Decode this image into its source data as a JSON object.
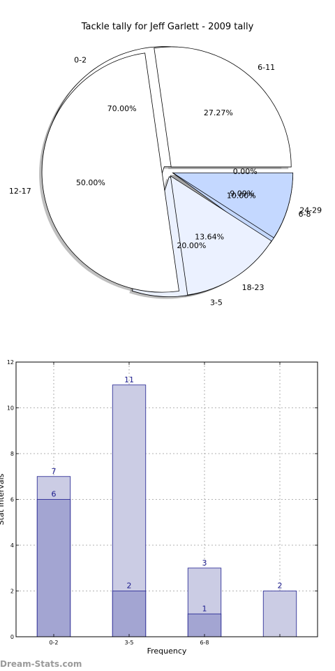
{
  "chart_data": [
    {
      "type": "pie",
      "title": "Tackle tally for Jeff Garlett - 2009 tally",
      "series": [
        {
          "name": "",
          "slices": [
            {
              "label": "0-2",
              "percent": 70.0,
              "percent_label": "70.00%",
              "color": "#ffffff"
            },
            {
              "label": "3-5",
              "percent": 20.0,
              "percent_label": "20.00%",
              "color": "#ebf1ff"
            },
            {
              "label": "6-8",
              "percent": 10.0,
              "percent_label": "10.00%",
              "color": "#c4d8ff"
            },
            {
              "label": "",
              "percent": 0.0,
              "percent_label": "0.00%",
              "color": "#ffffff"
            }
          ]
        },
        {
          "name": "",
          "slices": [
            {
              "label": "6-11",
              "percent": 27.27,
              "percent_label": "27.27%",
              "color": "#ffffff"
            },
            {
              "label": "12-17",
              "percent": 50.0,
              "percent_label": "50.00%",
              "color": "#ffffff"
            },
            {
              "label": "18-23",
              "percent": 13.64,
              "percent_label": "13.64%",
              "color": "#ebf1ff"
            },
            {
              "label": "24-29",
              "percent": 9.09,
              "percent_label": "9.09%",
              "color": "#c4d8ff"
            }
          ]
        }
      ]
    },
    {
      "type": "bar",
      "xlabel": "Frequency",
      "ylabel": "Stat Intervals",
      "ylim": [
        0,
        12
      ],
      "yticks": [
        "0",
        "2",
        "4",
        "6",
        "8",
        "10",
        "12"
      ],
      "categories": [
        "0-2",
        "3-5",
        "6-8",
        ""
      ],
      "grid": true,
      "series": [
        {
          "name": "",
          "values": [
            7,
            11,
            3,
            2
          ],
          "labels": [
            "7",
            "11",
            "3",
            "2"
          ],
          "color": "#cbcce4"
        },
        {
          "name": "",
          "values": [
            6,
            2,
            1,
            0
          ],
          "labels": [
            "6",
            "2",
            "1",
            ""
          ],
          "color": "#a3a5d2"
        }
      ]
    }
  ],
  "watermark": "Dream-Stats.com"
}
